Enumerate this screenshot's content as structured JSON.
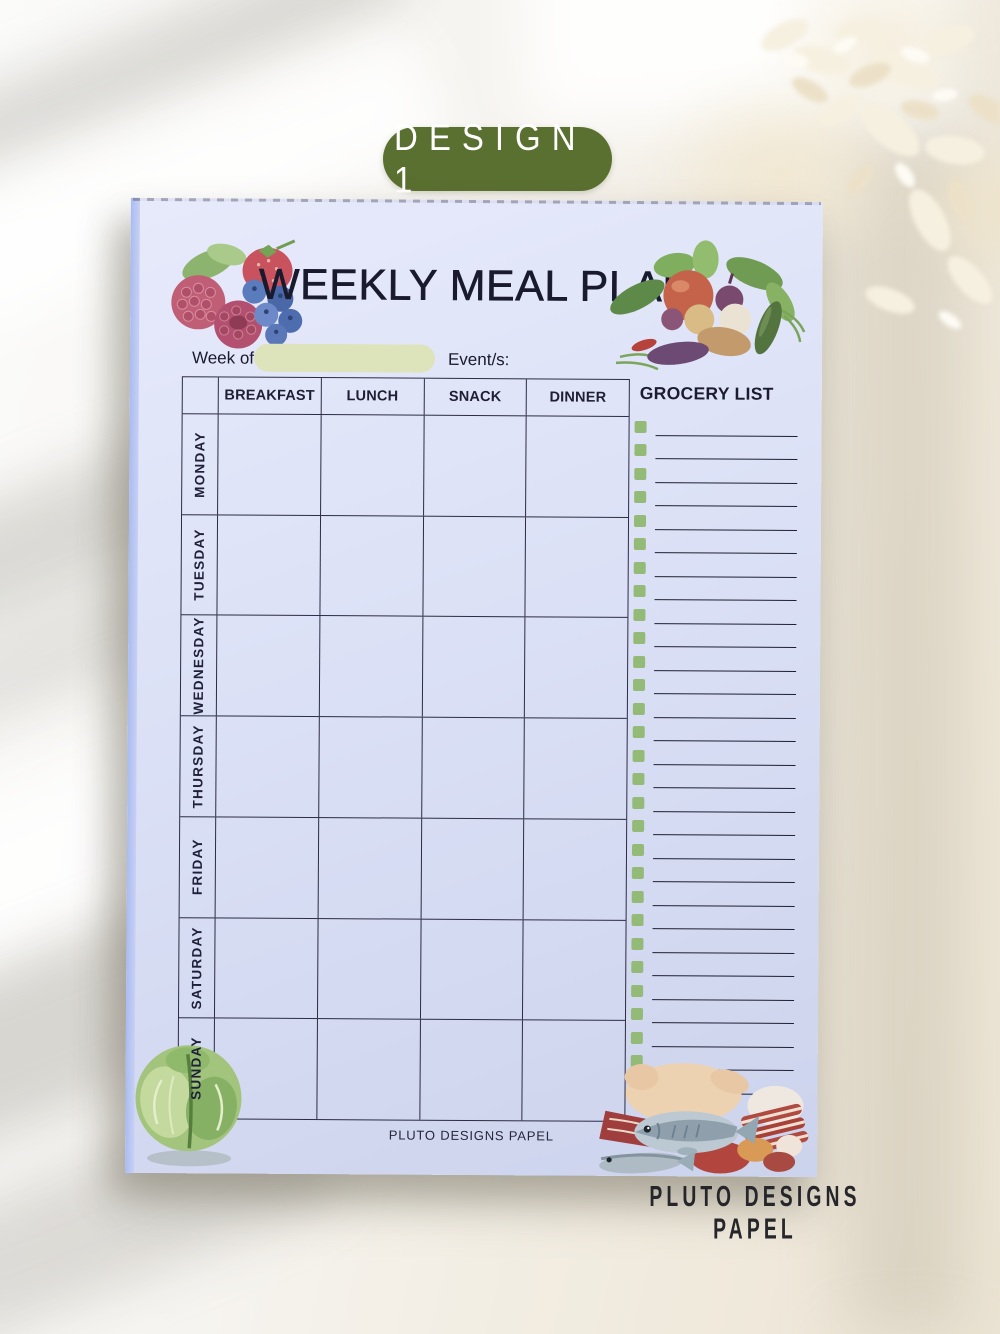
{
  "badge": {
    "label": "DESIGN 1"
  },
  "pad": {
    "title": "WEEKLY MEAL PLAN",
    "week_of_label": "Week of:",
    "week_of_value": "",
    "events_label": "Event/s:",
    "events_value": "",
    "meal_columns": [
      "BREAKFAST",
      "LUNCH",
      "SNACK",
      "DINNER"
    ],
    "days": [
      "MONDAY",
      "TUESDAY",
      "WEDNESDAY",
      "THURSDAY",
      "FRIDAY",
      "SATURDAY",
      "SUNDAY"
    ],
    "grocery_header": "GROCERY LIST",
    "grocery_line_count": 29,
    "footer": "PLUTO DESIGNS PAPEL"
  },
  "watermark": "PLUTO DESIGNS PAPEL",
  "colors": {
    "badge_green": "#5a7030",
    "checkbox_green": "#93bb77",
    "highlight_green": "#dde4bb",
    "paper_lavender": "#dce1f6",
    "page_edge_blue": "#a9bcf0",
    "grid_line": "#2c2c44",
    "ink": "#1a1a2e"
  },
  "icons": {
    "top_left": "berries-illustration",
    "top_right": "vegetables-illustration",
    "bottom_left": "cabbage-illustration",
    "bottom_right": "meat-and-fish-illustration",
    "grocery_bullet": "checkbox-square-icon"
  }
}
